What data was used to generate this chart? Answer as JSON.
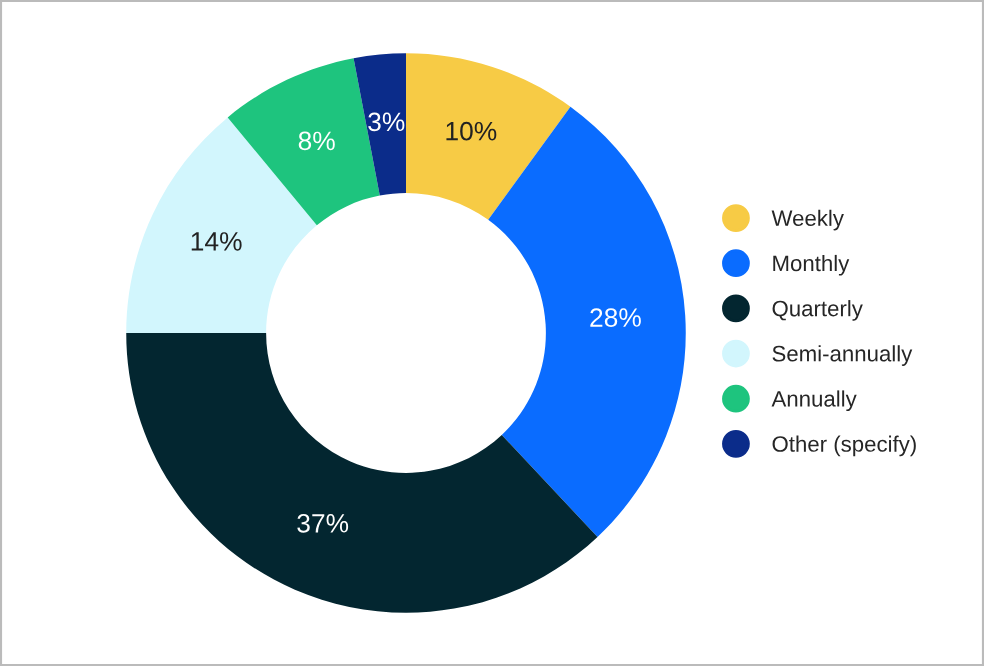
{
  "chart_data": {
    "type": "donut",
    "categories": [
      "Weekly",
      "Monthly",
      "Quarterly",
      "Semi-annually",
      "Annually",
      "Other (specify)"
    ],
    "values": [
      10,
      28,
      37,
      14,
      8,
      3
    ],
    "colors": [
      "#f7cb45",
      "#0a6cff",
      "#032630",
      "#d2f6fd",
      "#1ec47e",
      "#0b2c8a"
    ],
    "value_labels": [
      "10%",
      "28%",
      "37%",
      "14%",
      "8%",
      "3%"
    ],
    "legend": "right"
  }
}
